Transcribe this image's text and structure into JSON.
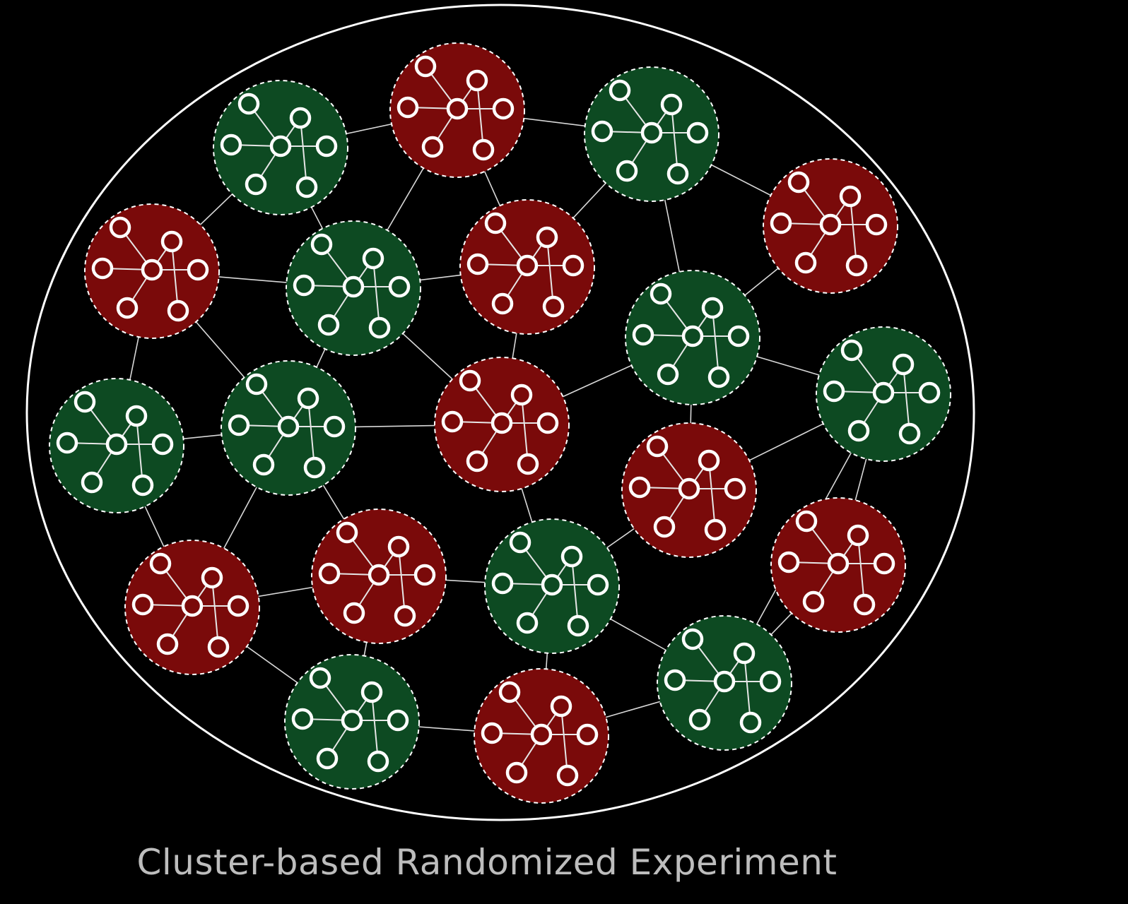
{
  "caption": "Cluster-based Randomized Experiment",
  "colors": {
    "background": "#000000",
    "treatment": "#7a0a0a",
    "control": "#0d4a22",
    "outline": "#ffffff",
    "caption": "#bdbdbd"
  },
  "clusters": [
    {
      "id": "c1",
      "group": "control"
    },
    {
      "id": "c2",
      "group": "treatment"
    },
    {
      "id": "c3",
      "group": "control"
    },
    {
      "id": "c4",
      "group": "treatment"
    },
    {
      "id": "c5",
      "group": "control"
    },
    {
      "id": "c6",
      "group": "treatment"
    },
    {
      "id": "c7",
      "group": "treatment"
    },
    {
      "id": "c8",
      "group": "control"
    },
    {
      "id": "c9",
      "group": "control"
    },
    {
      "id": "c10",
      "group": "control"
    },
    {
      "id": "c11",
      "group": "treatment"
    },
    {
      "id": "c12",
      "group": "control"
    },
    {
      "id": "c13",
      "group": "treatment"
    },
    {
      "id": "c14",
      "group": "treatment"
    },
    {
      "id": "c15",
      "group": "treatment"
    },
    {
      "id": "c16",
      "group": "control"
    },
    {
      "id": "c17",
      "group": "treatment"
    },
    {
      "id": "c18",
      "group": "control"
    },
    {
      "id": "c19",
      "group": "treatment"
    },
    {
      "id": "c20",
      "group": "control"
    }
  ],
  "links": [
    [
      "c1",
      "c2"
    ],
    [
      "c2",
      "c3"
    ],
    [
      "c3",
      "c4"
    ],
    [
      "c1",
      "c5"
    ],
    [
      "c1",
      "c6"
    ],
    [
      "c2",
      "c5"
    ],
    [
      "c2",
      "c7"
    ],
    [
      "c3",
      "c7"
    ],
    [
      "c3",
      "c8"
    ],
    [
      "c4",
      "c8"
    ],
    [
      "c6",
      "c5"
    ],
    [
      "c5",
      "c7"
    ],
    [
      "c6",
      "c9"
    ],
    [
      "c6",
      "c10"
    ],
    [
      "c5",
      "c10"
    ],
    [
      "c5",
      "c11"
    ],
    [
      "c7",
      "c11"
    ],
    [
      "c8",
      "c11"
    ],
    [
      "c8",
      "c12"
    ],
    [
      "c8",
      "c13"
    ],
    [
      "c9",
      "c10"
    ],
    [
      "c9",
      "c14"
    ],
    [
      "c10",
      "c11"
    ],
    [
      "c10",
      "c15"
    ],
    [
      "c10",
      "c14"
    ],
    [
      "c11",
      "c16"
    ],
    [
      "c12",
      "c13"
    ],
    [
      "c12",
      "c17"
    ],
    [
      "c13",
      "c16"
    ],
    [
      "c14",
      "c15"
    ],
    [
      "c14",
      "c18"
    ],
    [
      "c15",
      "c16"
    ],
    [
      "c15",
      "c18"
    ],
    [
      "c16",
      "c20"
    ],
    [
      "c16",
      "c19"
    ],
    [
      "c17",
      "c20"
    ],
    [
      "c18",
      "c19"
    ],
    [
      "c19",
      "c20"
    ],
    [
      "c12",
      "c20"
    ]
  ]
}
